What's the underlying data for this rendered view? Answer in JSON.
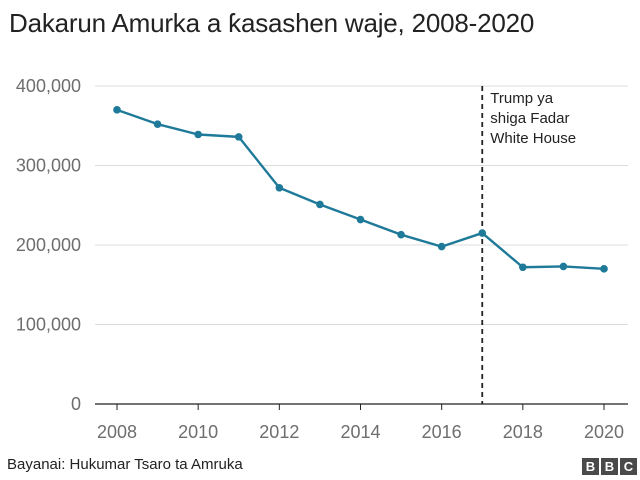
{
  "chart_data": {
    "type": "line",
    "title": "Dakarun Amurka a ƙasashen waje, 2008-2020",
    "xlabel": "",
    "ylabel": "",
    "x": [
      2008,
      2009,
      2010,
      2011,
      2012,
      2013,
      2014,
      2015,
      2016,
      2017,
      2018,
      2019,
      2020
    ],
    "series": [
      {
        "name": "",
        "values": [
          370000,
          352000,
          339000,
          336000,
          272000,
          251000,
          232000,
          213000,
          198000,
          215000,
          172000,
          173000,
          170000
        ],
        "color": "#1f7a99"
      }
    ],
    "xlim": [
      2007.5,
      2020.6
    ],
    "ylim": [
      0,
      400000
    ],
    "x_ticks": [
      2008,
      2010,
      2012,
      2014,
      2016,
      2018,
      2020
    ],
    "x_tick_labels": [
      "2008",
      "2010",
      "2012",
      "2014",
      "2016",
      "2018",
      "2020"
    ],
    "y_ticks": [
      0,
      100000,
      200000,
      300000,
      400000
    ],
    "y_tick_labels": [
      "0",
      "100,000",
      "200,000",
      "300,000",
      "400,000"
    ],
    "grid": "horizontal",
    "annotations": [
      {
        "type": "vertical-dashed-line",
        "x": 2017,
        "text_lines": [
          "Trump ya",
          "shiga Fadar",
          "White House"
        ]
      }
    ]
  },
  "footer": {
    "source": "Bayanai: Hukumar Tsaro ta Amruka",
    "logo_letters": [
      "B",
      "B",
      "C"
    ]
  },
  "colors": {
    "line": "#1f7a99",
    "grid": "#dcdcdc",
    "axis": "#222222",
    "tick_text": "#6e6e6e",
    "annotation": "#222222",
    "logo": "#4a4a4a"
  }
}
